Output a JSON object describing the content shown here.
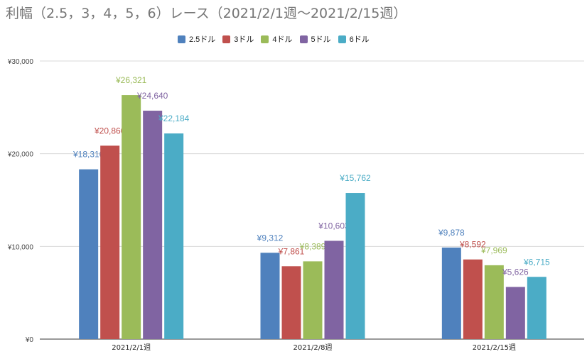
{
  "title": "利幅（2.5，3，4，5，6）レース（2021/2/1週～2021/2/15週）",
  "legend": [
    {
      "label": "2.5ドル",
      "color": "#4f81bd"
    },
    {
      "label": "3ドル",
      "color": "#c0504d"
    },
    {
      "label": "4ドル",
      "color": "#9bbb59"
    },
    {
      "label": "5ドル",
      "color": "#8064a2"
    },
    {
      "label": "6ドル",
      "color": "#4bacc6"
    }
  ],
  "chart_data": {
    "type": "bar",
    "title": "利幅（2.5，3，4，5，6）レース（2021/2/1週～2021/2/15週）",
    "categories": [
      "2021/2/1週",
      "2021/2/8週",
      "2021/2/15週"
    ],
    "series": [
      {
        "name": "2.5ドル",
        "color": "#4f81bd",
        "values": [
          18316,
          9312,
          9878
        ],
        "labels": [
          "¥18,316",
          "¥9,312",
          "¥9,878"
        ]
      },
      {
        "name": "3ドル",
        "color": "#c0504d",
        "values": [
          20866,
          7861,
          8592
        ],
        "labels": [
          "¥20,866",
          "¥7,861",
          "¥8,592"
        ]
      },
      {
        "name": "4ドル",
        "color": "#9bbb59",
        "values": [
          26321,
          8389,
          7969
        ],
        "labels": [
          "¥26,321",
          "¥8,389",
          "¥7,969"
        ]
      },
      {
        "name": "5ドル",
        "color": "#8064a2",
        "values": [
          24640,
          10603,
          5626
        ],
        "labels": [
          "¥24,640",
          "¥10,603",
          "¥5,626"
        ]
      },
      {
        "name": "6ドル",
        "color": "#4bacc6",
        "values": [
          22184,
          15762,
          6715
        ],
        "labels": [
          "¥22,184",
          "¥15,762",
          "¥6,715"
        ]
      }
    ],
    "ylim": [
      0,
      30000
    ],
    "yticks": [
      0,
      10000,
      20000,
      30000
    ],
    "ytick_labels": [
      "¥0",
      "¥10,000",
      "¥20,000",
      "¥30,000"
    ],
    "grid": true,
    "legend_position": "top"
  }
}
